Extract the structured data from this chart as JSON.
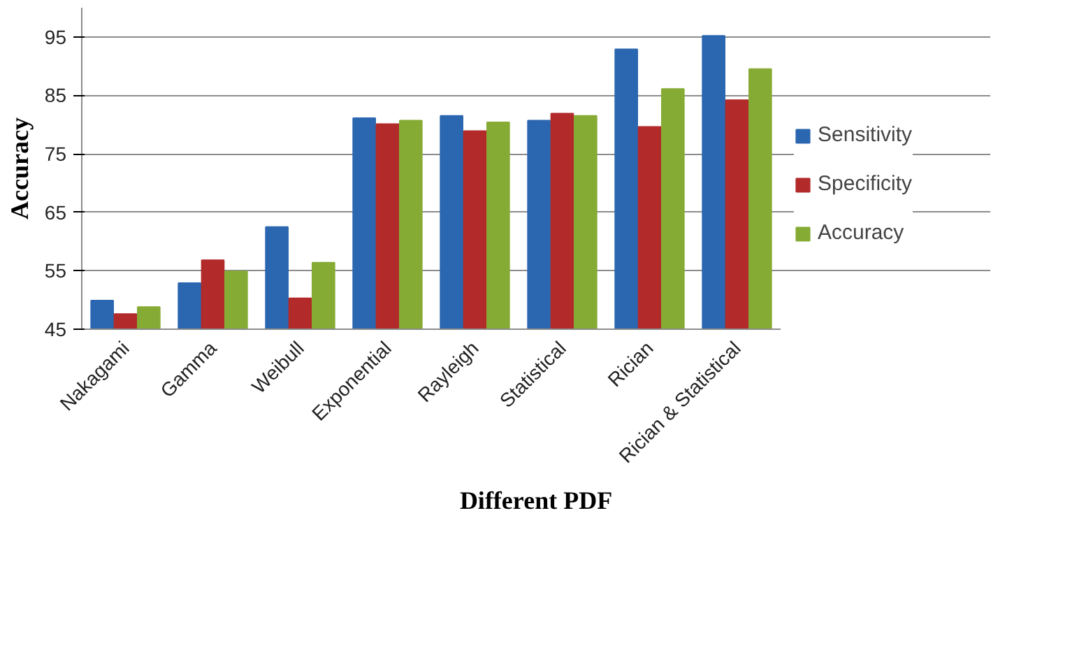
{
  "chart_data": {
    "type": "bar",
    "xlabel": "Different PDF",
    "ylabel": "Accuracy",
    "categories": [
      "Nakagami",
      "Gamma",
      "Weibull",
      "Exponential",
      "Rayleigh",
      "Statistical",
      "Rician",
      "Rician & Statistical"
    ],
    "series": [
      {
        "name": "Sensitivity",
        "color": "#2b66b0",
        "values": [
          49.9,
          52.9,
          62.5,
          81.1,
          81.5,
          80.7,
          92.9,
          95.2
        ]
      },
      {
        "name": "Specificity",
        "color": "#b22a2a",
        "values": [
          47.6,
          56.8,
          50.3,
          80.1,
          78.9,
          81.9,
          79.6,
          84.2
        ]
      },
      {
        "name": "Accuracy",
        "color": "#86ab34",
        "values": [
          48.8,
          54.9,
          56.4,
          80.7,
          80.4,
          81.5,
          86.1,
          89.5
        ]
      }
    ],
    "ylim": [
      45,
      100
    ],
    "yticks": [
      45,
      55,
      65,
      75,
      85,
      95
    ],
    "grid": "y",
    "legend": "right"
  }
}
